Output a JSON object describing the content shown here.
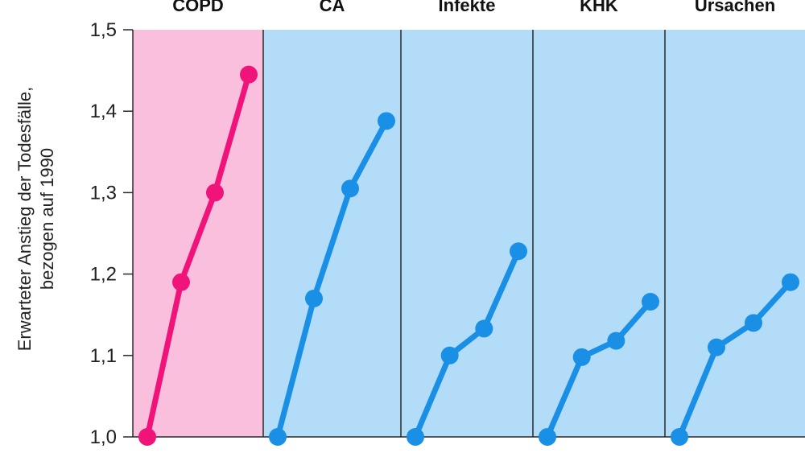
{
  "chart_data": {
    "type": "line",
    "ylabel_lines": [
      "Erwarteter Anstieg der Todesfälle,",
      "bezogen auf 1990"
    ],
    "ylim": [
      1.0,
      1.5
    ],
    "yticks": [
      1.0,
      1.1,
      1.2,
      1.3,
      1.4,
      1.5
    ],
    "ytick_labels": [
      "1,0",
      "1,1",
      "1,2",
      "1,3",
      "1,4",
      "1,5"
    ],
    "panels": [
      {
        "title": "COPD",
        "background": "#f9bfdc",
        "line_color": "#f0147a",
        "values": [
          1.0,
          1.19,
          1.3,
          1.445
        ]
      },
      {
        "title": "CA",
        "background": "#b2dcf7",
        "line_color": "#1a8fe6",
        "values": [
          1.0,
          1.17,
          1.305,
          1.388
        ]
      },
      {
        "title": "Infekte",
        "background": "#b2dcf7",
        "line_color": "#1a8fe6",
        "values": [
          1.0,
          1.1,
          1.133,
          1.228
        ]
      },
      {
        "title": "KHK",
        "background": "#b2dcf7",
        "line_color": "#1a8fe6",
        "values": [
          1.0,
          1.098,
          1.118,
          1.166
        ]
      },
      {
        "title": "Ursachen",
        "background": "#b2dcf7",
        "line_color": "#1a8fe6",
        "values": [
          1.0,
          1.11,
          1.14,
          1.19
        ]
      }
    ]
  }
}
